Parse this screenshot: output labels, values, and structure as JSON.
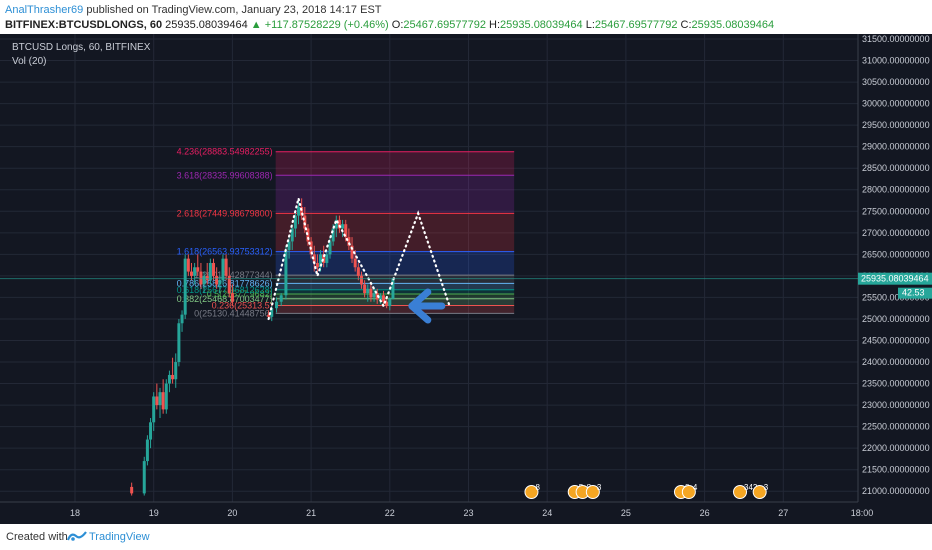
{
  "header": {
    "author": "AnalThrasher69",
    "published_text": "published on TradingView.com, January 23, 2018 14:17 EST",
    "symbol": "BITFINEX:BTCUSDLONGS, 60",
    "last": "25935.08039464",
    "change": "▲ +117.87528229 (+0.46%)",
    "o_label": "O:",
    "o": "25467.69577792",
    "h_label": "H:",
    "h": "25935.08039464",
    "l_label": "L:",
    "l": "25467.69577792",
    "c_label": "C:",
    "c": "25935.08039464"
  },
  "legend": {
    "title": "BTCUSD Longs, 60, BITFINEX",
    "volume": "Vol (20)"
  },
  "footer": {
    "created_with": "Created with",
    "brand": "TradingView"
  },
  "colors": {
    "background": "#131722",
    "up": "#26a69a",
    "down": "#ef5350",
    "arrow": "#3a7fd5",
    "grid": "#232836",
    "axis_text": "#c9cdd6"
  },
  "chart_data": {
    "type": "candlestick",
    "y_axis": {
      "min": 20750,
      "max": 31500,
      "ticks": [
        "21000.00000000",
        "21500.00000000",
        "22000.00000000",
        "22500.00000000",
        "23000.00000000",
        "23500.00000000",
        "24000.00000000",
        "24500.00000000",
        "25000.00000000",
        "25500.00000000",
        "26000.00000000",
        "26500.00000000",
        "27000.00000000",
        "27500.00000000",
        "28000.00000000",
        "28500.00000000",
        "29000.00000000",
        "29500.00000000",
        "30000.00000000",
        "30500.00000000",
        "31000.00000000",
        "31500.00000000"
      ]
    },
    "x_axis": {
      "ticks": [
        "18",
        "19",
        "20",
        "21",
        "22",
        "23",
        "24",
        "25",
        "26",
        "27",
        "18:00"
      ]
    },
    "price_label": "25935.08039464",
    "volume_label": "42.53",
    "fibonacci": [
      {
        "ratio": 0,
        "price": 25130.41448756,
        "label": "0(25130.41448756)",
        "color": "#787b86"
      },
      {
        "ratio": 0.236,
        "price": 25313.5,
        "label": "0.236(25313.5)",
        "color": "#ef5350"
      },
      {
        "ratio": 0.382,
        "price": 25468.87003477,
        "label": "0.382(25468.87003477)",
        "color": "#81c784"
      },
      {
        "ratio": 0.5,
        "price": 25577.9682,
        "label": "0.5(25577.9682)",
        "color": "#4caf50"
      },
      {
        "ratio": 0.618,
        "price": 25677.96812628,
        "label": "0.618(25677.96812628)",
        "color": "#009688"
      },
      {
        "ratio": 0.786,
        "price": 25826.81778626,
        "label": "0.786(25826.81778626)",
        "color": "#64b5f6"
      },
      {
        "ratio": 1,
        "price": 26016.42877344,
        "label": "1(26016.42877344)",
        "color": "#787b86"
      },
      {
        "ratio": 1.618,
        "price": 26563.93753312,
        "label": "1.618(26563.93753312)",
        "color": "#2962ff"
      },
      {
        "ratio": 2.618,
        "price": 27449.986798,
        "label": "2.618(27449.98679800)",
        "color": "#f23645"
      },
      {
        "ratio": 3.618,
        "price": 28335.99608388,
        "label": "3.618(28335.99608388)",
        "color": "#9c27b0"
      },
      {
        "ratio": 4.236,
        "price": 28883.54982255,
        "label": "4.236(28883.54982255)",
        "color": "#e91e63"
      }
    ],
    "candles": [
      {
        "x": 18.72,
        "o": 21100,
        "h": 21200,
        "l": 20900,
        "c": 20950
      },
      {
        "x": 18.88,
        "o": 20950,
        "h": 21800,
        "l": 20900,
        "c": 21700
      },
      {
        "x": 18.92,
        "o": 21700,
        "h": 22300,
        "l": 21600,
        "c": 22200
      },
      {
        "x": 18.96,
        "o": 22200,
        "h": 22700,
        "l": 22000,
        "c": 22600
      },
      {
        "x": 19.0,
        "o": 22600,
        "h": 23300,
        "l": 22400,
        "c": 23200
      },
      {
        "x": 19.04,
        "o": 23200,
        "h": 23500,
        "l": 22900,
        "c": 23000
      },
      {
        "x": 19.08,
        "o": 23000,
        "h": 23400,
        "l": 22700,
        "c": 23300
      },
      {
        "x": 19.12,
        "o": 23300,
        "h": 23600,
        "l": 22800,
        "c": 22900
      },
      {
        "x": 19.16,
        "o": 22900,
        "h": 23600,
        "l": 22800,
        "c": 23500
      },
      {
        "x": 19.2,
        "o": 23500,
        "h": 23800,
        "l": 23300,
        "c": 23700
      },
      {
        "x": 19.24,
        "o": 23700,
        "h": 24100,
        "l": 23500,
        "c": 23600
      },
      {
        "x": 19.28,
        "o": 23600,
        "h": 24200,
        "l": 23400,
        "c": 24000
      },
      {
        "x": 19.32,
        "o": 24000,
        "h": 25000,
        "l": 23900,
        "c": 24900
      },
      {
        "x": 19.36,
        "o": 24900,
        "h": 25200,
        "l": 24700,
        "c": 25100
      },
      {
        "x": 19.4,
        "o": 25100,
        "h": 26500,
        "l": 25000,
        "c": 26400
      },
      {
        "x": 19.44,
        "o": 26400,
        "h": 26500,
        "l": 26000,
        "c": 26100
      },
      {
        "x": 19.48,
        "o": 26100,
        "h": 26300,
        "l": 25900,
        "c": 26000
      },
      {
        "x": 19.52,
        "o": 26000,
        "h": 26300,
        "l": 25800,
        "c": 26200
      },
      {
        "x": 19.56,
        "o": 26200,
        "h": 26500,
        "l": 26000,
        "c": 26100
      },
      {
        "x": 19.6,
        "o": 26100,
        "h": 26300,
        "l": 25700,
        "c": 25800
      },
      {
        "x": 19.64,
        "o": 25800,
        "h": 26100,
        "l": 25600,
        "c": 26000
      },
      {
        "x": 19.68,
        "o": 26000,
        "h": 26300,
        "l": 25800,
        "c": 25900
      },
      {
        "x": 19.72,
        "o": 25900,
        "h": 26400,
        "l": 25800,
        "c": 26300
      },
      {
        "x": 19.76,
        "o": 26300,
        "h": 26400,
        "l": 25900,
        "c": 26000
      },
      {
        "x": 19.8,
        "o": 26000,
        "h": 26200,
        "l": 25700,
        "c": 25800
      },
      {
        "x": 19.84,
        "o": 25800,
        "h": 26000,
        "l": 25600,
        "c": 25900
      },
      {
        "x": 19.88,
        "o": 25900,
        "h": 26500,
        "l": 25800,
        "c": 26400
      },
      {
        "x": 19.92,
        "o": 26400,
        "h": 26500,
        "l": 25900,
        "c": 26000
      },
      {
        "x": 19.96,
        "o": 26000,
        "h": 26200,
        "l": 25500,
        "c": 25600
      },
      {
        "x": 20.0,
        "o": 25600,
        "h": 25800,
        "l": 25300,
        "c": 25400
      },
      {
        "x": 20.46,
        "o": 25100,
        "h": 25200,
        "l": 25000,
        "c": 25050
      },
      {
        "x": 20.5,
        "o": 25050,
        "h": 25300,
        "l": 24950,
        "c": 25250
      },
      {
        "x": 20.56,
        "o": 25250,
        "h": 25500,
        "l": 25150,
        "c": 25400
      },
      {
        "x": 20.62,
        "o": 25400,
        "h": 25600,
        "l": 25300,
        "c": 25550
      },
      {
        "x": 20.68,
        "o": 25550,
        "h": 26700,
        "l": 25450,
        "c": 26600
      },
      {
        "x": 20.72,
        "o": 26600,
        "h": 26900,
        "l": 26400,
        "c": 26800
      },
      {
        "x": 20.76,
        "o": 26800,
        "h": 27200,
        "l": 26600,
        "c": 27100
      },
      {
        "x": 20.8,
        "o": 27100,
        "h": 27500,
        "l": 26900,
        "c": 27400
      },
      {
        "x": 20.84,
        "o": 27400,
        "h": 27800,
        "l": 27200,
        "c": 27600
      },
      {
        "x": 20.88,
        "o": 27600,
        "h": 27800,
        "l": 27300,
        "c": 27400
      },
      {
        "x": 20.92,
        "o": 27400,
        "h": 27600,
        "l": 27000,
        "c": 27100
      },
      {
        "x": 20.96,
        "o": 27100,
        "h": 27200,
        "l": 26700,
        "c": 26800
      },
      {
        "x": 21.0,
        "o": 26800,
        "h": 26900,
        "l": 26400,
        "c": 26500
      },
      {
        "x": 21.04,
        "o": 26500,
        "h": 26700,
        "l": 26100,
        "c": 26300
      },
      {
        "x": 21.08,
        "o": 26300,
        "h": 26500,
        "l": 26000,
        "c": 26200
      },
      {
        "x": 21.12,
        "o": 26200,
        "h": 26600,
        "l": 26100,
        "c": 26500
      },
      {
        "x": 21.16,
        "o": 26500,
        "h": 26700,
        "l": 26200,
        "c": 26300
      },
      {
        "x": 21.2,
        "o": 26300,
        "h": 26600,
        "l": 26200,
        "c": 26500
      },
      {
        "x": 21.24,
        "o": 26500,
        "h": 26900,
        "l": 26400,
        "c": 26800
      },
      {
        "x": 21.28,
        "o": 26800,
        "h": 27200,
        "l": 26700,
        "c": 27100
      },
      {
        "x": 21.32,
        "o": 27100,
        "h": 27400,
        "l": 26900,
        "c": 27300
      },
      {
        "x": 21.36,
        "o": 27300,
        "h": 27400,
        "l": 27000,
        "c": 27100
      },
      {
        "x": 21.4,
        "o": 27100,
        "h": 27300,
        "l": 26900,
        "c": 27200
      },
      {
        "x": 21.44,
        "o": 27200,
        "h": 27300,
        "l": 26800,
        "c": 26900
      },
      {
        "x": 21.48,
        "o": 26900,
        "h": 27100,
        "l": 26600,
        "c": 26700
      },
      {
        "x": 21.52,
        "o": 26700,
        "h": 26900,
        "l": 26300,
        "c": 26400
      },
      {
        "x": 21.56,
        "o": 26400,
        "h": 26600,
        "l": 26100,
        "c": 26200
      },
      {
        "x": 21.6,
        "o": 26200,
        "h": 26300,
        "l": 25900,
        "c": 26000
      },
      {
        "x": 21.64,
        "o": 26000,
        "h": 26100,
        "l": 25700,
        "c": 25800
      },
      {
        "x": 21.68,
        "o": 25800,
        "h": 25900,
        "l": 25500,
        "c": 25600
      },
      {
        "x": 21.72,
        "o": 25600,
        "h": 25800,
        "l": 25400,
        "c": 25700
      },
      {
        "x": 21.76,
        "o": 25700,
        "h": 25800,
        "l": 25400,
        "c": 25500
      },
      {
        "x": 21.8,
        "o": 25500,
        "h": 25700,
        "l": 25400,
        "c": 25600
      },
      {
        "x": 21.84,
        "o": 25600,
        "h": 25700,
        "l": 25350,
        "c": 25450
      },
      {
        "x": 21.88,
        "o": 25450,
        "h": 25600,
        "l": 25350,
        "c": 25550
      },
      {
        "x": 21.92,
        "o": 25550,
        "h": 25650,
        "l": 25300,
        "c": 25400
      },
      {
        "x": 21.96,
        "o": 25400,
        "h": 25500,
        "l": 25250,
        "c": 25300
      },
      {
        "x": 22.0,
        "o": 25300,
        "h": 25500,
        "l": 25200,
        "c": 25467
      },
      {
        "x": 22.04,
        "o": 25467,
        "h": 25960,
        "l": 25450,
        "c": 25935
      }
    ],
    "annotations": [
      {
        "type": "dotted-projection",
        "points": [
          [
            20.46,
            25000
          ],
          [
            20.84,
            27800
          ],
          [
            21.08,
            26000
          ],
          [
            21.32,
            27300
          ],
          [
            21.92,
            25300
          ],
          [
            22.36,
            27450
          ],
          [
            22.76,
            25300
          ]
        ]
      },
      {
        "type": "arrow",
        "direction": "left",
        "at": [
          22.28,
          25300
        ]
      }
    ],
    "event_badges": [
      {
        "x": 23.8,
        "label": "8"
      },
      {
        "x": 24.35,
        "label": "5"
      },
      {
        "x": 24.45,
        "label": "8"
      },
      {
        "x": 24.58,
        "label": "3"
      },
      {
        "x": 25.7,
        "label": "8"
      },
      {
        "x": 25.8,
        "label": "4"
      },
      {
        "x": 26.45,
        "label": "342"
      },
      {
        "x": 26.7,
        "label": "3"
      }
    ]
  }
}
